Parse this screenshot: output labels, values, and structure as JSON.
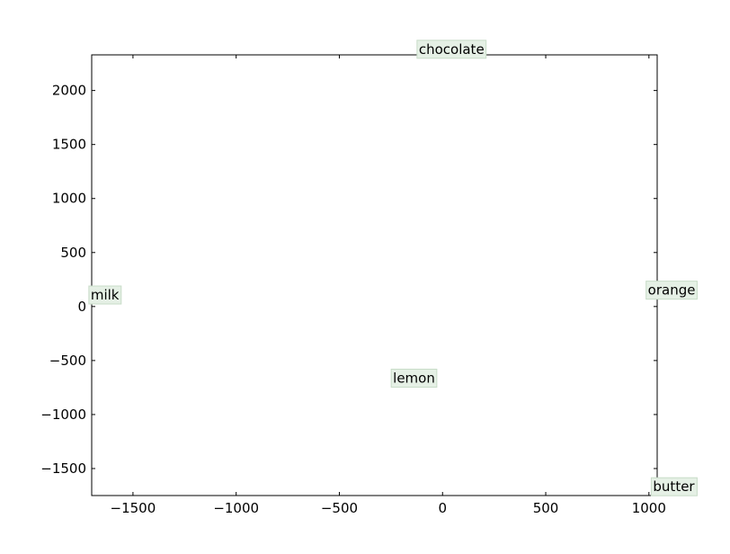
{
  "chart_data": {
    "type": "scatter",
    "title": "",
    "xlabel": "",
    "ylabel": "",
    "xlim": [
      -1700,
      1040
    ],
    "ylim": [
      -1750,
      2330
    ],
    "x_ticks": [
      -1500,
      -1000,
      -500,
      0,
      500,
      1000
    ],
    "y_ticks": [
      -1500,
      -1000,
      -500,
      0,
      500,
      1000,
      1500,
      2000
    ],
    "grid": false,
    "legend": "none",
    "label_box_color": "#e5f0e5",
    "label_box_edge": "#c8dcc8",
    "points": [
      {
        "label": "chocolate",
        "x": -115,
        "y": 2340
      },
      {
        "label": "milk",
        "x": -1705,
        "y": 65
      },
      {
        "label": "orange",
        "x": 995,
        "y": 110
      },
      {
        "label": "lemon",
        "x": -240,
        "y": -705
      },
      {
        "label": "butter",
        "x": 1020,
        "y": -1710
      }
    ]
  }
}
